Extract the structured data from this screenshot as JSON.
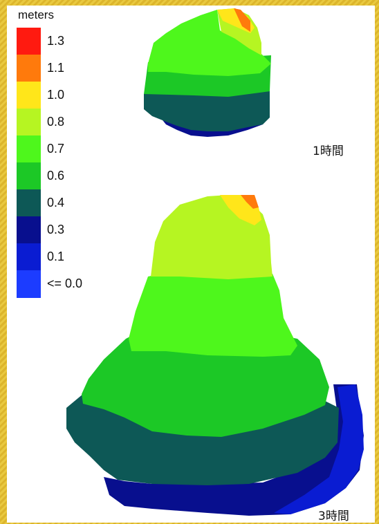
{
  "legend": {
    "title": "meters",
    "items": [
      {
        "label": "1.3",
        "color": "#ff1a10"
      },
      {
        "label": "1.1",
        "color": "#ff7a0c"
      },
      {
        "label": "1.0",
        "color": "#ffe61a"
      },
      {
        "label": "0.8",
        "color": "#b6f522"
      },
      {
        "label": "0.7",
        "color": "#4ef71c"
      },
      {
        "label": "0.6",
        "color": "#1cc826"
      },
      {
        "label": "0.4",
        "color": "#0d5856"
      },
      {
        "label": "0.3",
        "color": "#080f8e"
      },
      {
        "label": "0.1",
        "color": "#0a1cd2"
      },
      {
        "label": "<= 0.0",
        "color": "#1c3cff"
      }
    ]
  },
  "maps": {
    "hour1": {
      "label": "1時間"
    },
    "hour3": {
      "label": "3時間"
    }
  }
}
